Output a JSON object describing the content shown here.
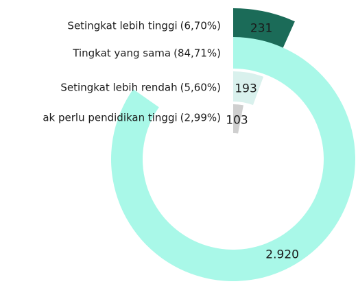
{
  "chart_data": {
    "type": "radial-bar",
    "categories": [
      "Setingkat lebih tinggi",
      "Tingkat yang sama",
      "Setingkat lebih rendah",
      "ak perlu pendidikan tinggi"
    ],
    "percents": [
      {
        "value": 6.7,
        "label": "(6,70%)"
      },
      {
        "value": 84.71,
        "label": "(84,71%)"
      },
      {
        "value": 5.6,
        "label": "(5,60%)"
      },
      {
        "value": 2.99,
        "label": "(2,99%)"
      }
    ],
    "values": [
      231,
      2920,
      193,
      103
    ],
    "value_labels": [
      "231",
      "2.920",
      "193",
      "103"
    ],
    "colors": [
      "#1b6b58",
      "#a9f8e8",
      "#d9f1ed",
      "#cfcfcf"
    ]
  }
}
